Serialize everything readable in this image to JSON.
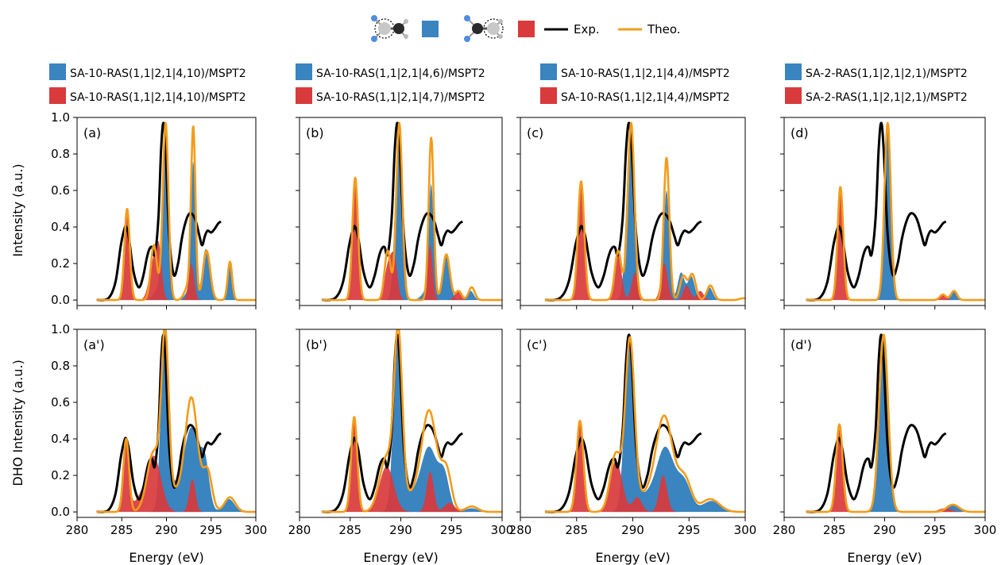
{
  "legend": {
    "exp_label": "Exp.",
    "theo_label": "Theo.",
    "molecule_left": "molecule-left-carbon-circled",
    "molecule_right": "molecule-right-carbon-circled"
  },
  "colors": {
    "blue": "#3a84c0",
    "red": "#d93a3c",
    "exp": "#000000",
    "theo": "#f39c1a"
  },
  "columns": [
    {
      "blue_label": "SA-10-RAS(1,1|2,1|4,10)/MSPT2",
      "red_label": "SA-10-RAS(1,1|2,1|4,10)/MSPT2"
    },
    {
      "blue_label": "SA-10-RAS(1,1|2,1|4,6)/MSPT2",
      "red_label": "SA-10-RAS(1,1|2,1|4,7)/MSPT2"
    },
    {
      "blue_label": "SA-10-RAS(1,1|2,1|4,4)/MSPT2",
      "red_label": "SA-10-RAS(1,1|2,1|4,4)/MSPT2"
    },
    {
      "blue_label": "SA-2-RAS(1,1|2,1|2,1)/MSPT2",
      "red_label": "SA-2-RAS(1,1|2,1|2,1)/MSPT2"
    }
  ],
  "chart_data": {
    "type": "area",
    "xlabel": "Energy (eV)",
    "ylabel_top": "Intensity (a.u.)",
    "ylabel_bottom": "DHO Intensity (a.u.)",
    "xlim": [
      280,
      300
    ],
    "ylim": [
      -0.03,
      1.0
    ],
    "xticks": [
      280,
      285,
      290,
      295,
      300
    ],
    "yticks": [
      0.0,
      0.2,
      0.4,
      0.6,
      0.8,
      1.0
    ],
    "experiment": {
      "name": "Exp.",
      "x": [
        282.2,
        283.5,
        284.3,
        284.9,
        285.3,
        285.5,
        285.8,
        286.3,
        286.9,
        287.4,
        287.8,
        288.1,
        288.4,
        288.7,
        289.1,
        289.4,
        289.65,
        289.9,
        290.3,
        290.8,
        291.3,
        291.7,
        292.1,
        292.5,
        292.9,
        293.3,
        293.7,
        294.0,
        294.3,
        294.6,
        295.0,
        295.4,
        295.8,
        296.1
      ],
      "y": [
        0.0,
        0.01,
        0.1,
        0.3,
        0.39,
        0.4,
        0.34,
        0.16,
        0.07,
        0.13,
        0.23,
        0.28,
        0.29,
        0.25,
        0.45,
        0.82,
        0.97,
        0.83,
        0.36,
        0.14,
        0.2,
        0.33,
        0.42,
        0.47,
        0.47,
        0.43,
        0.35,
        0.3,
        0.35,
        0.38,
        0.37,
        0.39,
        0.42,
        0.43
      ]
    },
    "panels": [
      {
        "label": "(a)",
        "blue": [
          [
            289.9,
            0.95,
            0.35
          ],
          [
            293.0,
            0.72,
            0.25
          ],
          [
            294.4,
            0.28,
            0.4
          ],
          [
            297.0,
            0.2,
            0.25
          ],
          [
            292.6,
            0.05,
            0.5
          ],
          [
            288.9,
            0.05,
            0.4
          ]
        ],
        "red": [
          [
            285.6,
            0.5,
            0.3
          ],
          [
            288.6,
            0.22,
            0.5
          ],
          [
            289.2,
            0.2,
            0.3
          ],
          [
            292.8,
            0.2,
            0.3
          ]
        ],
        "theo": [
          [
            285.6,
            0.5,
            0.3
          ],
          [
            288.6,
            0.3,
            0.35
          ],
          [
            289.9,
            0.97,
            0.32
          ],
          [
            293.0,
            0.93,
            0.25
          ],
          [
            294.5,
            0.27,
            0.4
          ],
          [
            297.1,
            0.21,
            0.25
          ],
          [
            292.4,
            0.07,
            0.4
          ]
        ]
      },
      {
        "label": "(b)",
        "blue": [
          [
            289.8,
            0.95,
            0.35
          ],
          [
            293.0,
            0.6,
            0.25
          ],
          [
            294.5,
            0.25,
            0.35
          ],
          [
            296.9,
            0.05,
            0.3
          ],
          [
            292.6,
            0.05,
            0.5
          ]
        ],
        "red": [
          [
            285.5,
            0.67,
            0.28
          ],
          [
            288.8,
            0.2,
            0.4
          ],
          [
            289.4,
            0.18,
            0.3
          ],
          [
            292.9,
            0.3,
            0.25
          ],
          [
            295.6,
            0.05,
            0.3
          ]
        ],
        "theo": [
          [
            285.5,
            0.67,
            0.28
          ],
          [
            288.7,
            0.27,
            0.3
          ],
          [
            289.85,
            0.97,
            0.3
          ],
          [
            293.0,
            0.89,
            0.25
          ],
          [
            294.5,
            0.25,
            0.35
          ],
          [
            295.7,
            0.05,
            0.3
          ],
          [
            297.0,
            0.07,
            0.3
          ]
        ]
      },
      {
        "label": "(c)",
        "blue": [
          [
            289.8,
            0.95,
            0.35
          ],
          [
            293.0,
            0.6,
            0.25
          ],
          [
            294.3,
            0.15,
            0.3
          ],
          [
            295.2,
            0.13,
            0.3
          ],
          [
            296.8,
            0.07,
            0.3
          ]
        ],
        "red": [
          [
            285.4,
            0.65,
            0.28
          ],
          [
            288.7,
            0.25,
            0.3
          ],
          [
            290.2,
            0.15,
            0.3
          ],
          [
            292.8,
            0.2,
            0.3
          ],
          [
            294.8,
            0.08,
            0.3
          ],
          [
            296.0,
            0.05,
            0.3
          ]
        ],
        "theo": [
          [
            285.4,
            0.65,
            0.28
          ],
          [
            288.7,
            0.27,
            0.3
          ],
          [
            289.85,
            0.97,
            0.3
          ],
          [
            293.0,
            0.78,
            0.25
          ],
          [
            294.5,
            0.13,
            0.3
          ],
          [
            295.3,
            0.14,
            0.3
          ],
          [
            296.9,
            0.08,
            0.3
          ],
          [
            299.8,
            0.01,
            0.3
          ]
        ]
      },
      {
        "label": "(d)",
        "blue": [
          [
            290.3,
            0.97,
            0.32
          ],
          [
            296.8,
            0.05,
            0.3
          ]
        ],
        "red": [
          [
            285.6,
            0.6,
            0.28
          ],
          [
            295.8,
            0.03,
            0.3
          ]
        ],
        "theo": [
          [
            285.6,
            0.62,
            0.28
          ],
          [
            290.3,
            0.97,
            0.32
          ],
          [
            295.8,
            0.03,
            0.3
          ],
          [
            296.9,
            0.05,
            0.3
          ]
        ]
      },
      {
        "label": "(a')",
        "blue": [
          [
            289.8,
            0.95,
            0.42
          ],
          [
            292.8,
            0.45,
            0.8
          ],
          [
            294.3,
            0.25,
            0.5
          ],
          [
            297.0,
            0.07,
            0.6
          ],
          [
            291.0,
            0.12,
            0.8
          ]
        ],
        "red": [
          [
            285.5,
            0.4,
            0.32
          ],
          [
            288.6,
            0.3,
            0.8
          ],
          [
            292.9,
            0.18,
            0.35
          ],
          [
            287.0,
            0.06,
            0.8
          ]
        ],
        "theo": [
          [
            285.5,
            0.4,
            0.32
          ],
          [
            288.6,
            0.33,
            0.75
          ],
          [
            289.85,
            0.9,
            0.4
          ],
          [
            292.8,
            0.62,
            0.7
          ],
          [
            294.6,
            0.22,
            0.5
          ],
          [
            297.1,
            0.08,
            0.6
          ],
          [
            291.0,
            0.1,
            0.8
          ]
        ]
      },
      {
        "label": "(b')",
        "blue": [
          [
            289.7,
            0.95,
            0.42
          ],
          [
            292.8,
            0.35,
            0.8
          ],
          [
            294.3,
            0.18,
            0.5
          ],
          [
            297.0,
            0.02,
            0.6
          ],
          [
            291.0,
            0.08,
            0.8
          ]
        ],
        "red": [
          [
            285.4,
            0.52,
            0.3
          ],
          [
            288.6,
            0.25,
            0.7
          ],
          [
            292.9,
            0.22,
            0.35
          ],
          [
            294.8,
            0.05,
            0.5
          ]
        ],
        "theo": [
          [
            285.4,
            0.52,
            0.3
          ],
          [
            288.6,
            0.3,
            0.7
          ],
          [
            289.75,
            0.92,
            0.4
          ],
          [
            292.8,
            0.55,
            0.75
          ],
          [
            294.5,
            0.22,
            0.5
          ],
          [
            297.0,
            0.03,
            0.6
          ],
          [
            291.0,
            0.08,
            0.8
          ]
        ]
      },
      {
        "label": "(c')",
        "blue": [
          [
            289.7,
            0.95,
            0.42
          ],
          [
            292.9,
            0.35,
            0.8
          ],
          [
            294.6,
            0.15,
            0.6
          ],
          [
            297.0,
            0.06,
            0.8
          ],
          [
            291.0,
            0.08,
            0.8
          ]
        ],
        "red": [
          [
            285.3,
            0.5,
            0.3
          ],
          [
            288.5,
            0.28,
            0.55
          ],
          [
            292.7,
            0.2,
            0.35
          ],
          [
            290.4,
            0.08,
            0.4
          ]
        ],
        "theo": [
          [
            285.3,
            0.5,
            0.3
          ],
          [
            288.5,
            0.32,
            0.5
          ],
          [
            289.75,
            0.92,
            0.4
          ],
          [
            292.8,
            0.52,
            0.75
          ],
          [
            294.6,
            0.18,
            0.6
          ],
          [
            296.9,
            0.07,
            0.8
          ],
          [
            291.0,
            0.08,
            0.8
          ]
        ]
      },
      {
        "label": "(d')",
        "blue": [
          [
            289.9,
            0.95,
            0.45
          ],
          [
            296.8,
            0.04,
            0.6
          ]
        ],
        "red": [
          [
            285.5,
            0.45,
            0.32
          ],
          [
            296.0,
            0.02,
            0.6
          ]
        ],
        "theo": [
          [
            285.5,
            0.48,
            0.32
          ],
          [
            289.9,
            0.97,
            0.45
          ],
          [
            296.8,
            0.04,
            0.6
          ]
        ]
      }
    ]
  }
}
